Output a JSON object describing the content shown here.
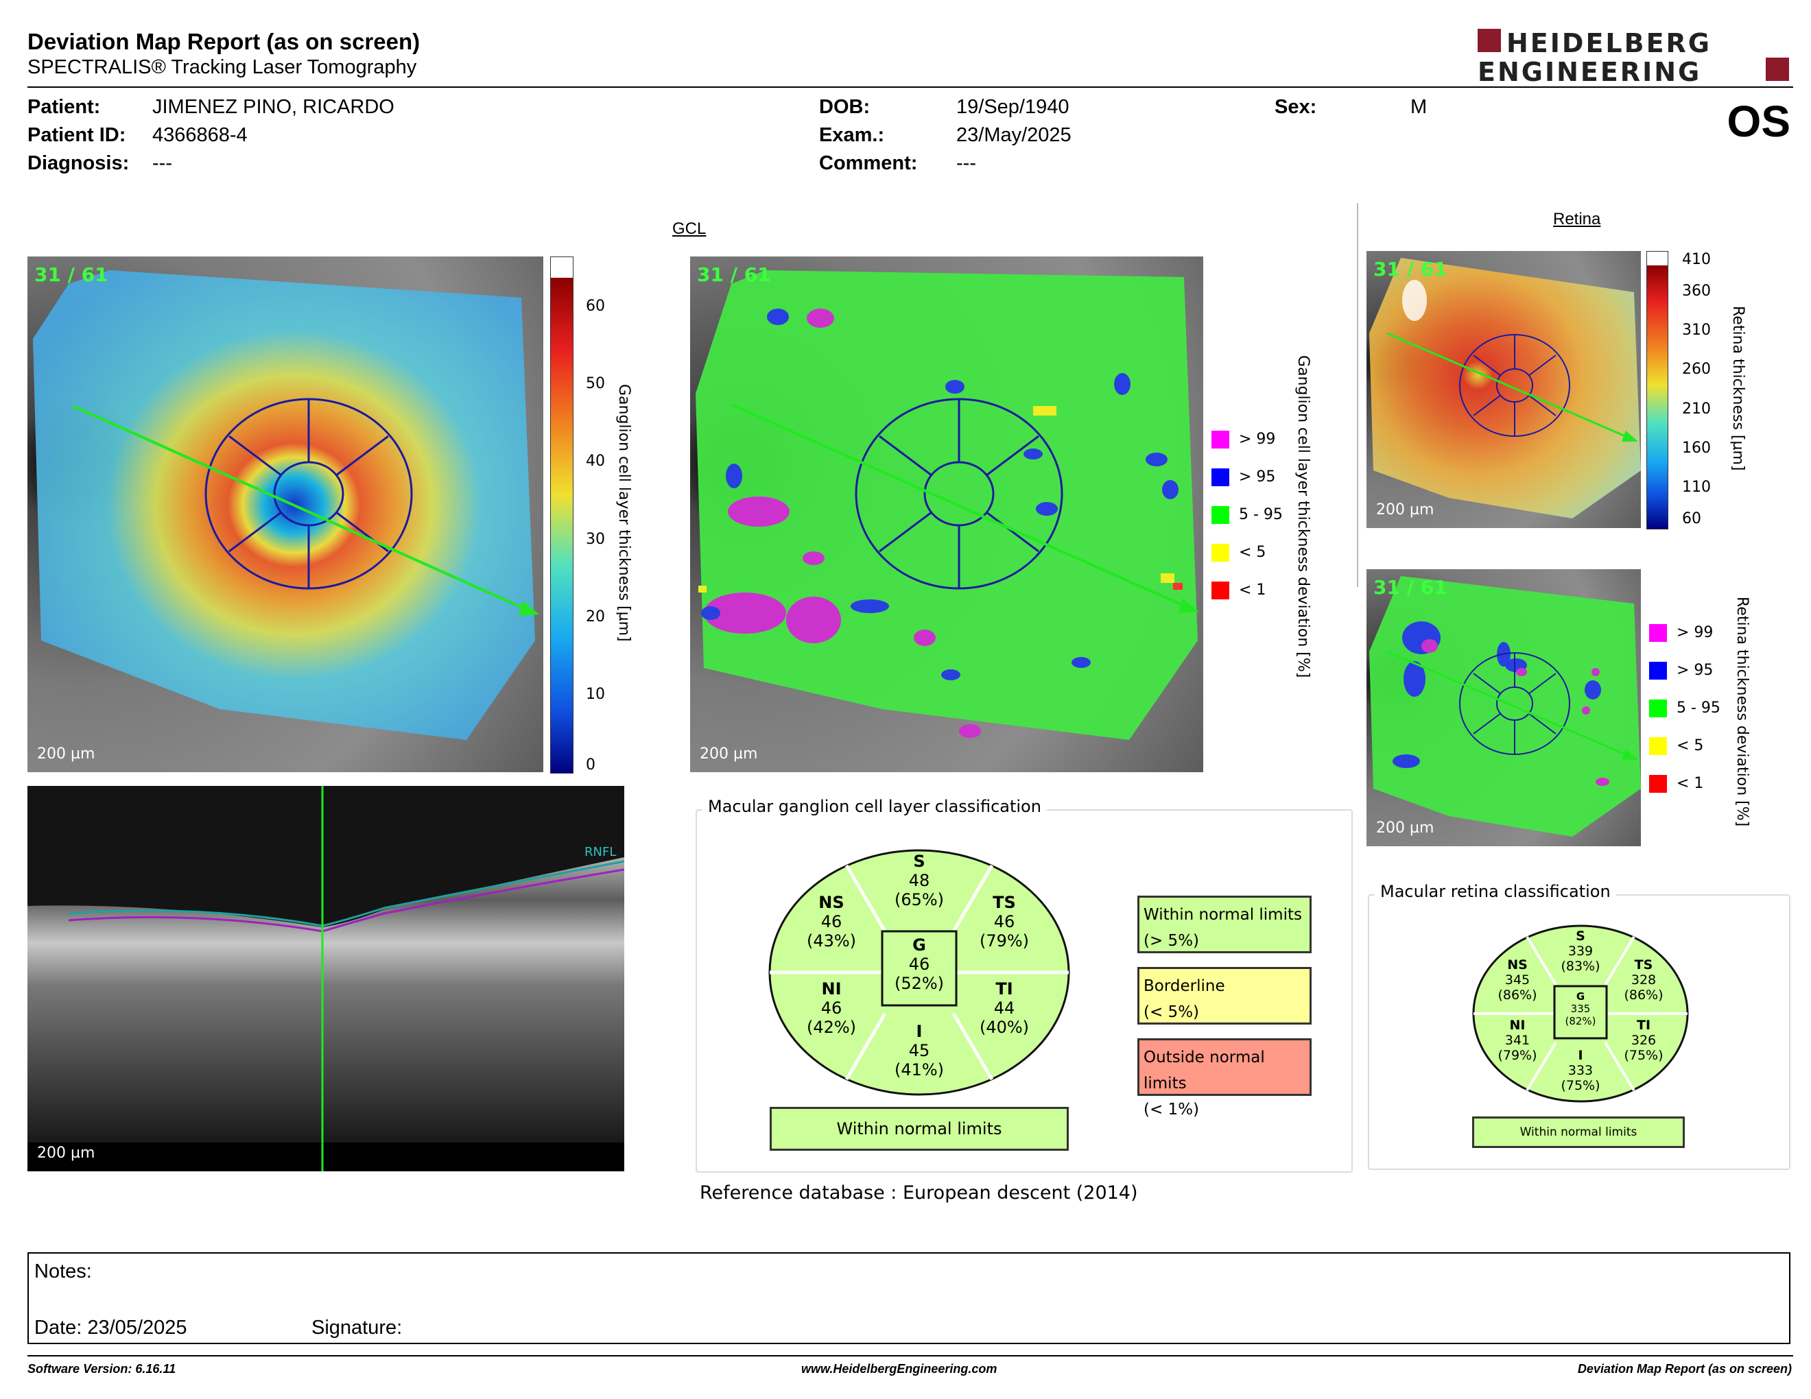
{
  "header": {
    "title": "Deviation Map Report (as on screen)",
    "subtitle": "SPECTRALIS® Tracking Laser Tomography",
    "logo_line1": "HEIDELBERG",
    "logo_line2": "ENGINEERING"
  },
  "patient": {
    "patient_label": "Patient:",
    "patient_name": "JIMENEZ PINO, RICARDO",
    "id_label": "Patient ID:",
    "id_value": "4366868-4",
    "diagnosis_label": "Diagnosis:",
    "diagnosis_value": "---",
    "dob_label": "DOB:",
    "dob_value": "19/Sep/1940",
    "exam_label": "Exam.:",
    "exam_value": "23/May/2025",
    "comment_label": "Comment:",
    "comment_value": "---",
    "sex_label": "Sex:",
    "sex_value": "M",
    "eye": "OS"
  },
  "gcl": {
    "section_title": "GCL",
    "frame": "31 / 61",
    "scale": "200 µm",
    "thickness_axis_label": "Ganglion cell layer thickness [µm]",
    "thickness_ticks": [
      "60",
      "50",
      "40",
      "30",
      "20",
      "10",
      "0"
    ],
    "deviation_axis_label": "Ganglion cell layer thickness deviation [%]",
    "deviation_legend": [
      {
        "label": "> 99",
        "color": "#ff00ff"
      },
      {
        "label": "> 95",
        "color": "#0000ff"
      },
      {
        "label": "5 - 95",
        "color": "#00ff00"
      },
      {
        "label": "< 5",
        "color": "#ffff00"
      },
      {
        "label": "< 1",
        "color": "#ff0000"
      }
    ],
    "bscan_layer_label": "RNFL"
  },
  "retina": {
    "section_title": "Retina",
    "frame": "31 / 61",
    "scale": "200 µm",
    "thickness_axis_label": "Retina thickness [µm]",
    "thickness_ticks": [
      "410",
      "360",
      "310",
      "260",
      "210",
      "160",
      "110",
      "60"
    ],
    "deviation_axis_label": "Retina thickness deviation [%]",
    "deviation_legend": [
      {
        "label": "> 99",
        "color": "#ff00ff"
      },
      {
        "label": "> 95",
        "color": "#0000ff"
      },
      {
        "label": "5 - 95",
        "color": "#00ff00"
      },
      {
        "label": "< 5",
        "color": "#ffff00"
      },
      {
        "label": "< 1",
        "color": "#ff0000"
      }
    ]
  },
  "gcl_classification": {
    "title": "Macular ganglion cell layer classification",
    "sectors": {
      "S": {
        "name": "S",
        "value": "48",
        "pct": "(65%)"
      },
      "NS": {
        "name": "NS",
        "value": "46",
        "pct": "(43%)"
      },
      "TS": {
        "name": "TS",
        "value": "46",
        "pct": "(79%)"
      },
      "G": {
        "name": "G",
        "value": "46",
        "pct": "(52%)"
      },
      "NI": {
        "name": "NI",
        "value": "46",
        "pct": "(42%)"
      },
      "TI": {
        "name": "TI",
        "value": "44",
        "pct": "(40%)"
      },
      "I": {
        "name": "I",
        "value": "45",
        "pct": "(41%)"
      }
    },
    "result": "Within normal limits",
    "legend": {
      "within_1": "Within normal limits",
      "within_2": "(> 5%)",
      "border_1": "Borderline",
      "border_2": "(< 5%)",
      "outside_1": "Outside normal limits",
      "outside_2": "(< 1%)"
    },
    "reference_label": "Reference database :",
    "reference_value": "European descent (2014)"
  },
  "retina_classification": {
    "title": "Macular retina classification",
    "sectors": {
      "S": {
        "name": "S",
        "value": "339",
        "pct": "(83%)"
      },
      "NS": {
        "name": "NS",
        "value": "345",
        "pct": "(86%)"
      },
      "TS": {
        "name": "TS",
        "value": "328",
        "pct": "(86%)"
      },
      "G": {
        "name": "G",
        "value": "335",
        "pct": "(82%)"
      },
      "NI": {
        "name": "NI",
        "value": "341",
        "pct": "(79%)"
      },
      "TI": {
        "name": "TI",
        "value": "326",
        "pct": "(75%)"
      },
      "I": {
        "name": "I",
        "value": "333",
        "pct": "(75%)"
      }
    },
    "result": "Within normal limits"
  },
  "notes": {
    "notes_label": "Notes:",
    "date_label": "Date: 23/05/2025",
    "signature_label": "Signature:"
  },
  "footer": {
    "software": "Software Version: 6.16.11",
    "website": "www.HeidelbergEngineering.com",
    "report": "Deviation Map Report (as on screen)"
  },
  "colors": {
    "normal": "#ccff99",
    "borderline": "#ffff99",
    "outside": "#ff9988",
    "grid": "#1a1aa0",
    "arrow": "#22e822"
  }
}
